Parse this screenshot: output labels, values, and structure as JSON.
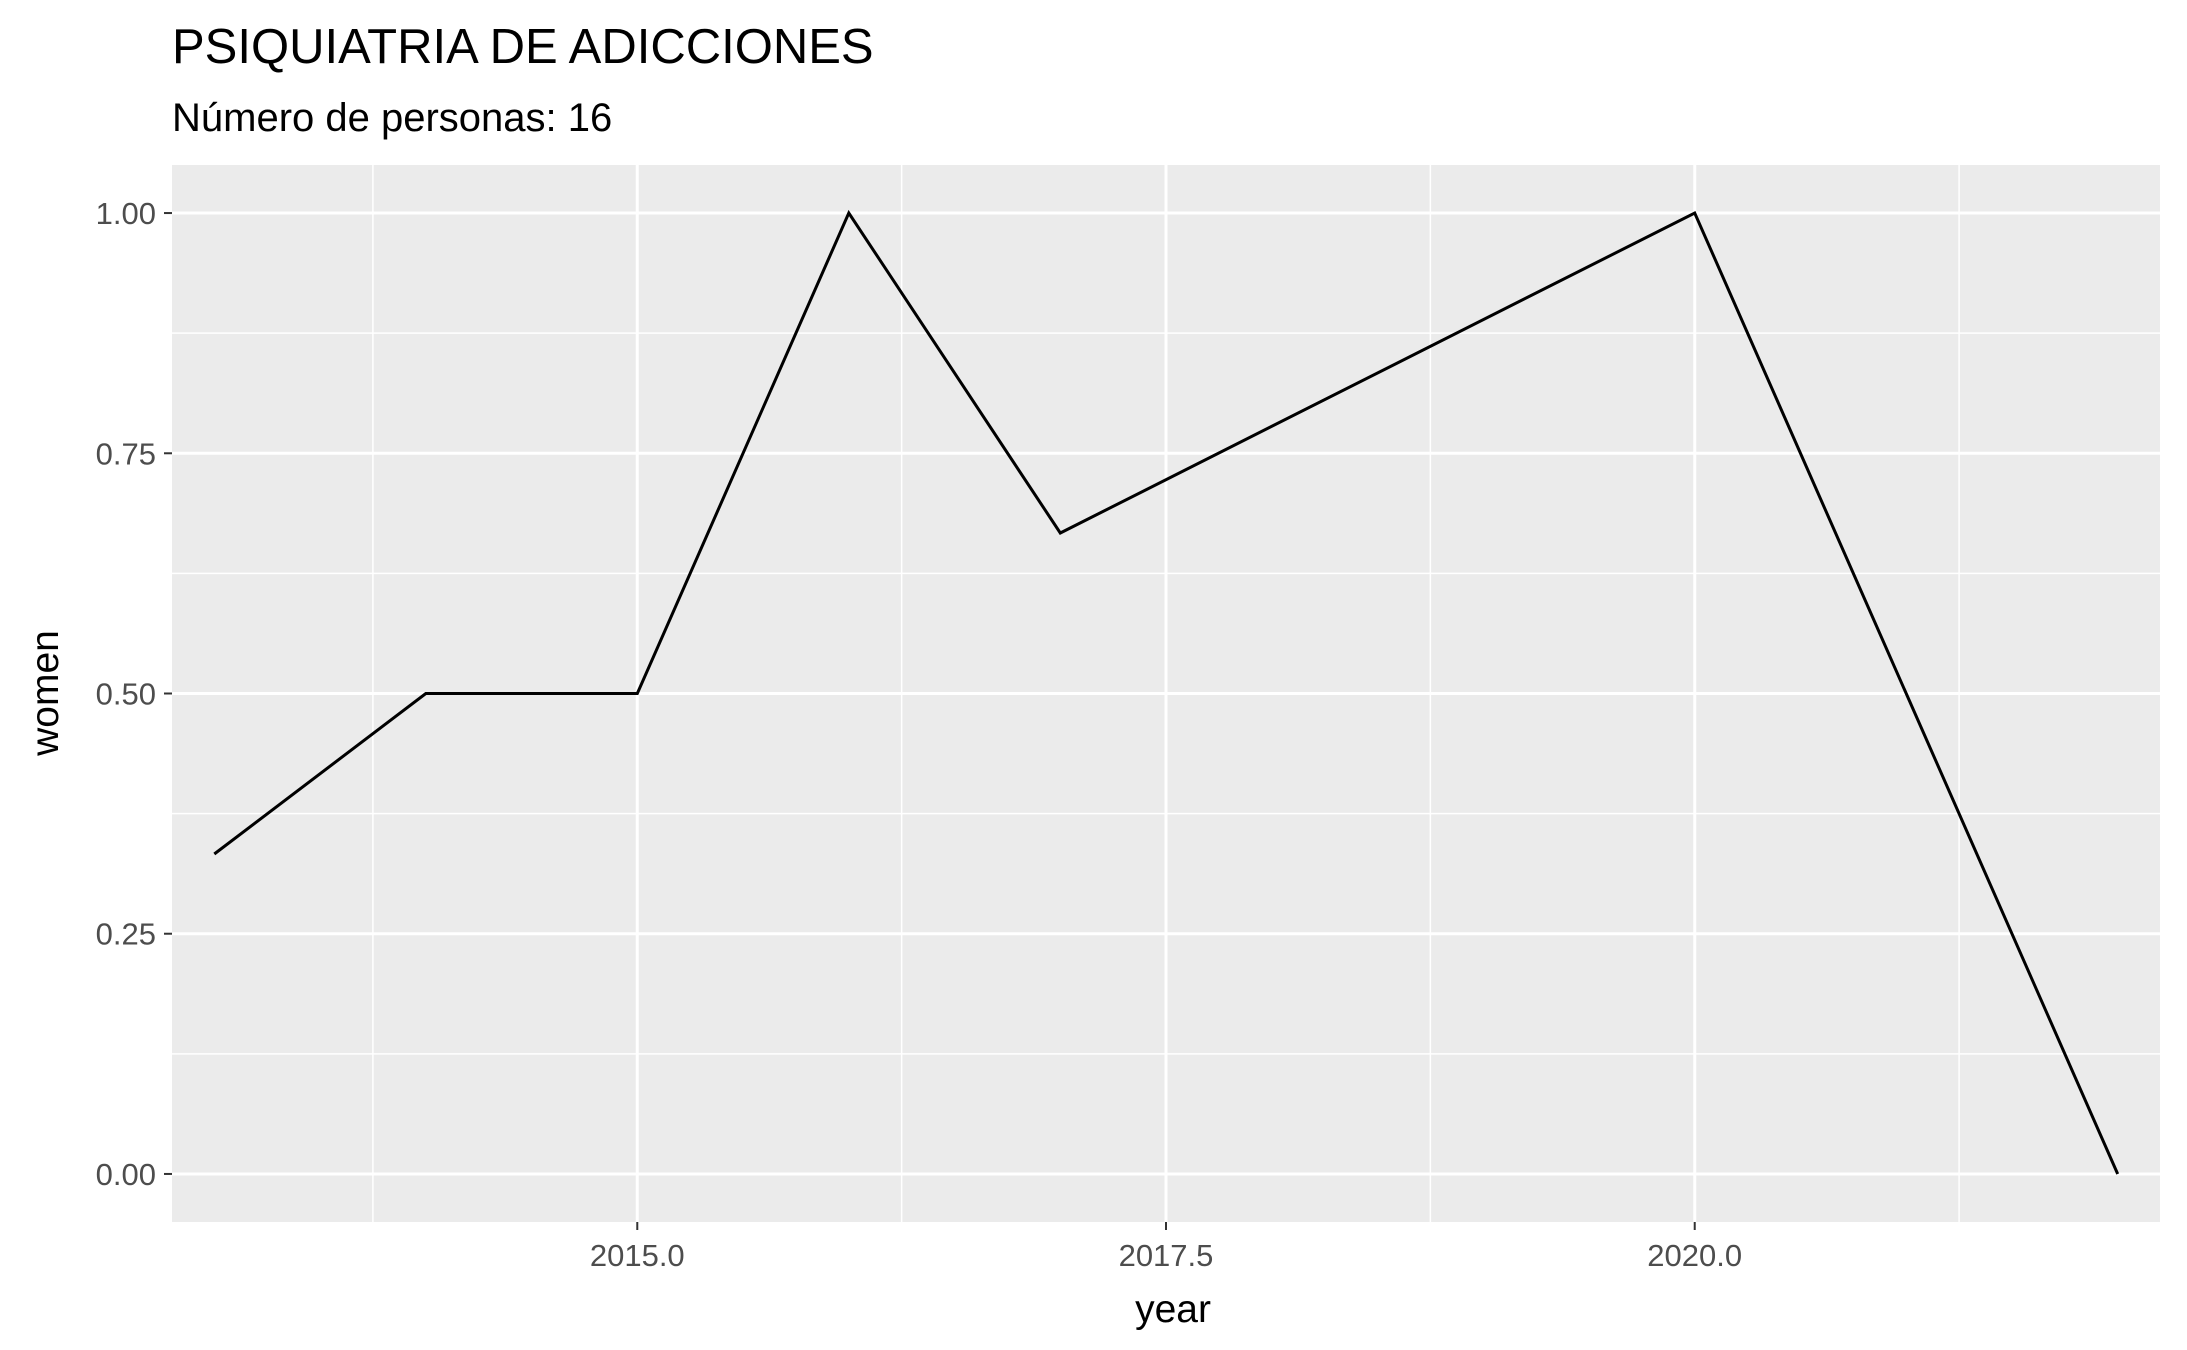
{
  "chart_data": {
    "type": "line",
    "title": "PSIQUIATRIA DE ADICCIONES",
    "subtitle": "Número de personas: 16",
    "xlabel": "year",
    "ylabel": "women",
    "x": [
      2013,
      2014,
      2015,
      2016,
      2017,
      2020,
      2022
    ],
    "series": [
      {
        "values": [
          0.333,
          0.5,
          0.5,
          1.0,
          0.667,
          1.0,
          0.0
        ]
      }
    ],
    "xlim": [
      2012.8,
      2022.2
    ],
    "ylim": [
      -0.05,
      1.05
    ],
    "x_ticks": [
      2015.0,
      2017.5,
      2020.0
    ],
    "x_tick_labels": [
      "2015.0",
      "2017.5",
      "2020.0"
    ],
    "y_ticks": [
      0.0,
      0.25,
      0.5,
      0.75,
      1.0
    ],
    "y_tick_labels": [
      "0.00",
      "0.25",
      "0.50",
      "0.75",
      "1.00"
    ],
    "grid": true,
    "legend": "none",
    "colors": {
      "panel": "#ebebeb",
      "grid": "#ffffff",
      "line": "#000000",
      "tick_text": "#4d4d4d"
    }
  }
}
